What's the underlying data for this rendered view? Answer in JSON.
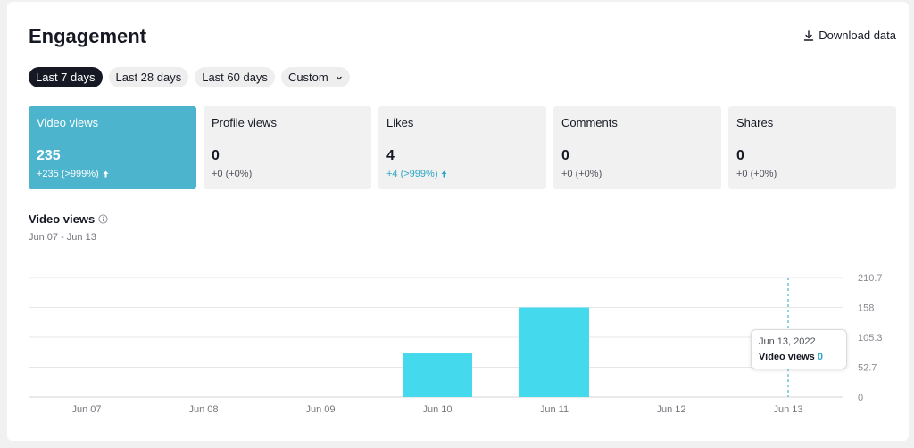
{
  "header": {
    "title": "Engagement",
    "download_label": "Download data"
  },
  "periods": [
    {
      "label": "Last 7 days",
      "active": true
    },
    {
      "label": "Last 28 days",
      "active": false
    },
    {
      "label": "Last 60 days",
      "active": false
    },
    {
      "label": "Custom",
      "active": false
    }
  ],
  "metrics": [
    {
      "label": "Video views",
      "value": "235",
      "change": "+235 (>999%)",
      "trend": "up",
      "active": true
    },
    {
      "label": "Profile views",
      "value": "0",
      "change": "+0 (+0%)",
      "trend": "none",
      "active": false
    },
    {
      "label": "Likes",
      "value": "4",
      "change": "+4 (>999%)",
      "trend": "up",
      "active": false
    },
    {
      "label": "Comments",
      "value": "0",
      "change": "+0 (+0%)",
      "trend": "none",
      "active": false
    },
    {
      "label": "Shares",
      "value": "0",
      "change": "+0 (+0%)",
      "trend": "none",
      "active": false
    }
  ],
  "chart_section": {
    "title": "Video views",
    "range": "Jun 07 - Jun 13"
  },
  "tooltip": {
    "date": "Jun 13, 2022",
    "label": "Video views",
    "value": "0"
  },
  "colors": {
    "accent": "#4cb4cc",
    "bar": "#45d9ed",
    "positive": "#2aa7c4",
    "dark": "#161823"
  },
  "chart_data": {
    "type": "bar",
    "categories": [
      "Jun 07",
      "Jun 08",
      "Jun 09",
      "Jun 10",
      "Jun 11",
      "Jun 12",
      "Jun 13"
    ],
    "values": [
      0,
      0,
      0,
      77,
      158,
      0,
      0
    ],
    "yticks": [
      "0",
      "52.7",
      "105.3",
      "158",
      "210.7"
    ],
    "ytick_values": [
      0,
      52.7,
      105.3,
      158,
      210.7
    ],
    "ylim": [
      0,
      210.7
    ],
    "highlight_index": 6,
    "grid": true
  }
}
